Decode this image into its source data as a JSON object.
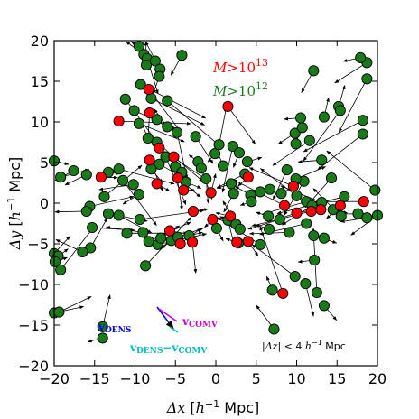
{
  "chart_data": {
    "type": "scatter",
    "title": "",
    "xlabel": {
      "sym": "Δx",
      "unit": "[h⁻¹ Mpc]"
    },
    "ylabel": {
      "sym": "Δy",
      "unit": "[h⁻¹ Mpc]"
    },
    "xlim": [
      -20,
      20
    ],
    "ylim": [
      -20,
      20
    ],
    "xticks": [
      -20,
      -15,
      -10,
      -5,
      0,
      5,
      10,
      15,
      20
    ],
    "yticks": [
      -20,
      -15,
      -10,
      -5,
      0,
      5,
      10,
      15,
      20
    ],
    "grid": false,
    "legend": {
      "placement": "top-right",
      "entries": [
        {
          "label": "M>10¹³",
          "color": "#ff0000"
        },
        {
          "label": "M>10¹²",
          "color": "#1a7a1a"
        }
      ]
    },
    "annotation": "|Δz| < 4 h⁻¹ Mpc",
    "vector_key": {
      "dens_label": "vDENS",
      "comv_label": "vCOMV",
      "diff_label": "vDENS−vCOMV",
      "dens_color": "#0000ff",
      "comv_color": "#cc00cc",
      "diff_color": "#00bbbb"
    },
    "colors": {
      "green": "#1a7a1a",
      "red": "#ff0000"
    },
    "series": [
      {
        "name": "M>10¹²",
        "points": [
          [
            -9.5,
            19.3
          ],
          [
            -8.9,
            18.3
          ],
          [
            -8.5,
            17.8
          ],
          [
            -8.6,
            17.0
          ],
          [
            -7.5,
            17.5
          ],
          [
            -6.9,
            16.5
          ],
          [
            -7.0,
            15.6
          ],
          [
            -4.2,
            18.2
          ],
          [
            -11.2,
            12.8
          ],
          [
            -9.3,
            14.6
          ],
          [
            -10.1,
            11.4
          ],
          [
            -8.0,
            12.9
          ],
          [
            -7.3,
            10.3
          ],
          [
            -6.0,
            12.6
          ],
          [
            -9.5,
            9.8
          ],
          [
            -8.4,
            8.0
          ],
          [
            -6.0,
            9.4
          ],
          [
            -4.8,
            8.7
          ],
          [
            -2.5,
            8.2
          ],
          [
            -7.3,
            7.5
          ],
          [
            -7.0,
            4.8
          ],
          [
            -8.0,
            4.2
          ],
          [
            -6.2,
            5.7
          ],
          [
            -5.0,
            4.5
          ],
          [
            -4.2,
            3.8
          ],
          [
            -3.7,
            2.6
          ],
          [
            -1.2,
            3.0
          ],
          [
            -0.1,
            6.1
          ],
          [
            0.4,
            7.2
          ],
          [
            2.1,
            7.0
          ],
          [
            2.9,
            6.2
          ],
          [
            3.9,
            5.1
          ],
          [
            3.6,
            3.6
          ],
          [
            1.9,
            2.4
          ],
          [
            -2.2,
            5.1
          ],
          [
            -1.8,
            4.3
          ],
          [
            0.9,
            4.6
          ],
          [
            -20.0,
            5.2
          ],
          [
            -19.2,
            3.2
          ],
          [
            -17.6,
            4.0
          ],
          [
            -16.0,
            3.5
          ],
          [
            -13.3,
            3.8
          ],
          [
            -12.0,
            4.2
          ],
          [
            -11.5,
            2.8
          ],
          [
            -10.2,
            2.3
          ],
          [
            -9.5,
            1.1
          ],
          [
            -13.8,
            0.8
          ],
          [
            -15.6,
            -0.4
          ],
          [
            -16.0,
            -1.0
          ],
          [
            -15.3,
            -3.0
          ],
          [
            -13.3,
            -1.3
          ],
          [
            -12.0,
            -1.5
          ],
          [
            -11.0,
            -3.7
          ],
          [
            -9.4,
            -2.0
          ],
          [
            -9.0,
            -3.6
          ],
          [
            -8.3,
            -4.7
          ],
          [
            -7.2,
            -5.1
          ],
          [
            -8.7,
            -7.7
          ],
          [
            -15.5,
            -5.5
          ],
          [
            -16.5,
            -6.0
          ],
          [
            -20.0,
            -6.2
          ],
          [
            -19.5,
            -6.5
          ],
          [
            -19.9,
            -7.2
          ],
          [
            -19.2,
            -8.2
          ],
          [
            -20.0,
            -13.5
          ],
          [
            -19.4,
            -13.4
          ],
          [
            -14.0,
            -15.2
          ],
          [
            -14.0,
            -16.6
          ],
          [
            -6.8,
            -4.3
          ],
          [
            -5.5,
            -4.6
          ],
          [
            -4.7,
            -4.2
          ],
          [
            -3.3,
            -4.0
          ],
          [
            0.1,
            -3.1
          ],
          [
            1.5,
            -2.1
          ],
          [
            2.5,
            -2.6
          ],
          [
            2.8,
            -4.9
          ],
          [
            3.0,
            -3.2
          ],
          [
            5.5,
            -5.1
          ],
          [
            6.6,
            -3.2
          ],
          [
            2.2,
            1.2
          ],
          [
            4.3,
            1.0
          ],
          [
            5.5,
            1.4
          ],
          [
            6.7,
            1.7
          ],
          [
            8.1,
            1.2
          ],
          [
            10.0,
            0.9
          ],
          [
            11.2,
            0.2
          ],
          [
            11.9,
            -0.3
          ],
          [
            13.1,
            0.1
          ],
          [
            14.5,
            -0.8
          ],
          [
            15.9,
            0.8
          ],
          [
            15.5,
            -1.6
          ],
          [
            17.6,
            -1.3
          ],
          [
            18.7,
            -1.8
          ],
          [
            20.0,
            -1.5
          ],
          [
            19.7,
            1.6
          ],
          [
            6.5,
            -1.6
          ],
          [
            7.9,
            -2.0
          ],
          [
            9.1,
            -3.6
          ],
          [
            11.2,
            -2.5
          ],
          [
            12.1,
            -4.0
          ],
          [
            13.4,
            -4.3
          ],
          [
            12.2,
            -7.0
          ],
          [
            9.8,
            -9.0
          ],
          [
            11.1,
            -9.9
          ],
          [
            12.5,
            -11.0
          ],
          [
            13.4,
            -12.6
          ],
          [
            7.0,
            -10.7
          ],
          [
            7.2,
            -15.5
          ],
          [
            9.8,
            8.6
          ],
          [
            10.7,
            9.3
          ],
          [
            9.9,
            7.3
          ],
          [
            11.6,
            7.7
          ],
          [
            10.5,
            10.5
          ],
          [
            13.4,
            10.6
          ],
          [
            15.2,
            11.9
          ],
          [
            15.4,
            11.4
          ],
          [
            18.2,
            10.2
          ],
          [
            18.2,
            8.5
          ],
          [
            18.7,
            15.3
          ],
          [
            18.7,
            17.3
          ],
          [
            17.9,
            17.9
          ],
          [
            12.1,
            16.3
          ],
          [
            13.1,
            5.3
          ],
          [
            14.3,
            3.1
          ],
          [
            8.8,
            4.1
          ],
          [
            10.9,
            2.7
          ],
          [
            4.4,
            0.2
          ],
          [
            9.9,
            3.0
          ]
        ]
      },
      {
        "name": "M>10¹³",
        "points": [
          [
            -8.3,
            14.0
          ],
          [
            -12.0,
            10.1
          ],
          [
            -8.2,
            11.1
          ],
          [
            -7.0,
            6.8
          ],
          [
            -8.2,
            5.3
          ],
          [
            -5.2,
            5.7
          ],
          [
            -4.7,
            3.1
          ],
          [
            -7.3,
            2.4
          ],
          [
            -14.2,
            3.2
          ],
          [
            -4.0,
            1.6
          ],
          [
            -2.8,
            -1.0
          ],
          [
            -5.7,
            -3.4
          ],
          [
            -4.4,
            -5.0
          ],
          [
            -2.9,
            -4.8
          ],
          [
            -0.4,
            -2.0
          ],
          [
            1.8,
            -1.6
          ],
          [
            2.6,
            -4.8
          ],
          [
            4.0,
            -4.7
          ],
          [
            4.0,
            3.2
          ],
          [
            1.5,
            11.9
          ],
          [
            8.3,
            -11.1
          ],
          [
            9.6,
            2.1
          ],
          [
            15.4,
            -0.3
          ],
          [
            18.3,
            0.2
          ],
          [
            8.5,
            -0.3
          ],
          [
            10.0,
            -1.2
          ],
          [
            11.8,
            -1.0
          ],
          [
            13.0,
            -0.8
          ],
          [
            -0.6,
            1.3
          ]
        ]
      }
    ]
  }
}
